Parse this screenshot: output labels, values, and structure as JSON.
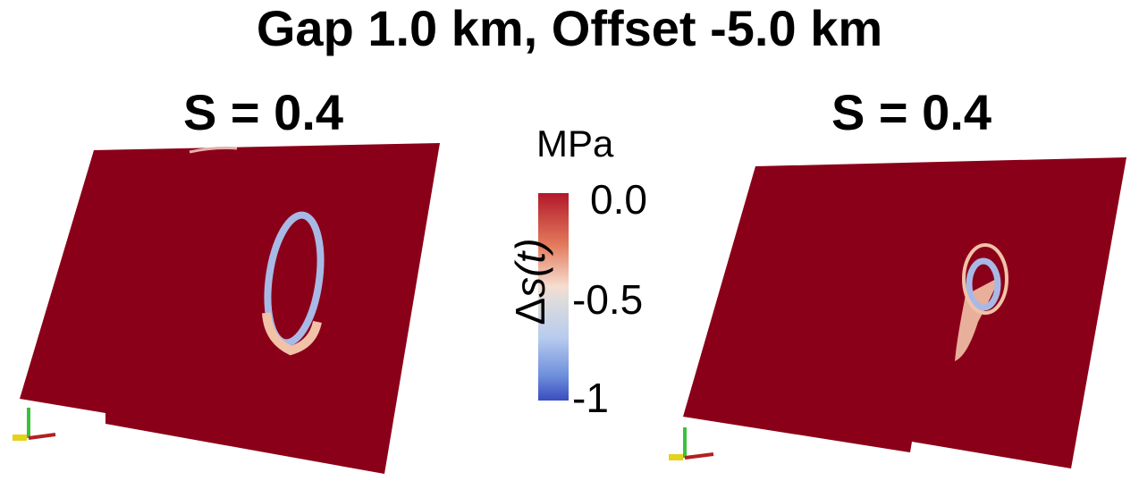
{
  "title": "Gap 1.0 km, Offset -5.0 km",
  "panels": [
    {
      "label": "S = 0.4"
    },
    {
      "label": "S = 0.4"
    }
  ],
  "colorbar": {
    "unit": "MPa",
    "label_prefix": "Δ",
    "label_var": "s(t)",
    "ticks": [
      "0.0",
      "-0.5",
      "-1"
    ],
    "range": [
      -1,
      0
    ],
    "colors": {
      "high": "#b2182b",
      "mid": "#dcdcdc",
      "low": "#3b4cc0"
    }
  },
  "colors": {
    "fault_fill": "#8b0019",
    "rupture_front": "#a9b9e6",
    "rupture_tail": "#f2c2a8"
  }
}
